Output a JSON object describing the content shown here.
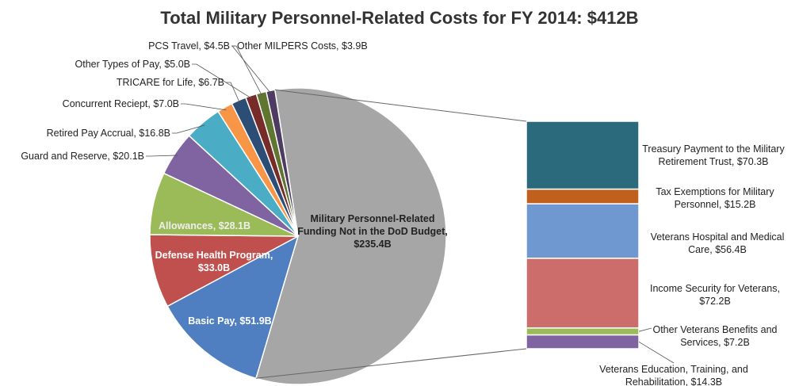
{
  "chart_data": {
    "type": "pie",
    "title": "Total Military Personnel-Related Costs for FY 2014: $412B",
    "categories": [
      "Military Personnel-Related Funding Not in the DoD Budget",
      "Basic Pay",
      "Defense Health Program",
      "Allowances",
      "Guard and Reserve",
      "Retired Pay Accrual",
      "Concurrent Reciept",
      "TRICARE for Life",
      "Other Types of Pay",
      "PCS Travel",
      "Other MILPERS Costs"
    ],
    "values": [
      235.4,
      51.9,
      33.0,
      28.1,
      20.1,
      16.8,
      7.0,
      6.7,
      5.0,
      4.5,
      3.9
    ],
    "value_labels": [
      "$235.4B",
      "$51.9B",
      "$33.0B",
      "$28.1B",
      "$20.1B",
      "$16.8B",
      "$7.0B",
      "$6.7B",
      "$5.0B",
      "$4.5B",
      "$3.9B"
    ],
    "colors": [
      "#a6a6a6",
      "#4f7fc0",
      "#c0504d",
      "#9bbb59",
      "#8064a2",
      "#4bacc6",
      "#f79646",
      "#2c4d75",
      "#772c2a",
      "#5f7530",
      "#4d3b62"
    ],
    "breakdown": {
      "type": "bar",
      "categories": [
        "Treasury Payment to the Military Retirement Trust",
        "Tax Exemptions for Military Personnel",
        "Veterans Hospital and Medical Care",
        "Income Security for Veterans",
        "Other Veterans Benefits and Services",
        "Veterans Education, Training, and Rehabilitation"
      ],
      "values": [
        70.3,
        15.2,
        56.4,
        72.2,
        7.2,
        14.3
      ],
      "value_labels": [
        "$70.3B",
        "$15.2B",
        "$56.4B",
        "$72.2B",
        "$7.2B",
        "$14.3B"
      ],
      "colors": [
        "#2b6a7c",
        "#c0601c",
        "#6f98d0",
        "#cd6d6b",
        "#9bbb59",
        "#8064a2"
      ]
    }
  }
}
